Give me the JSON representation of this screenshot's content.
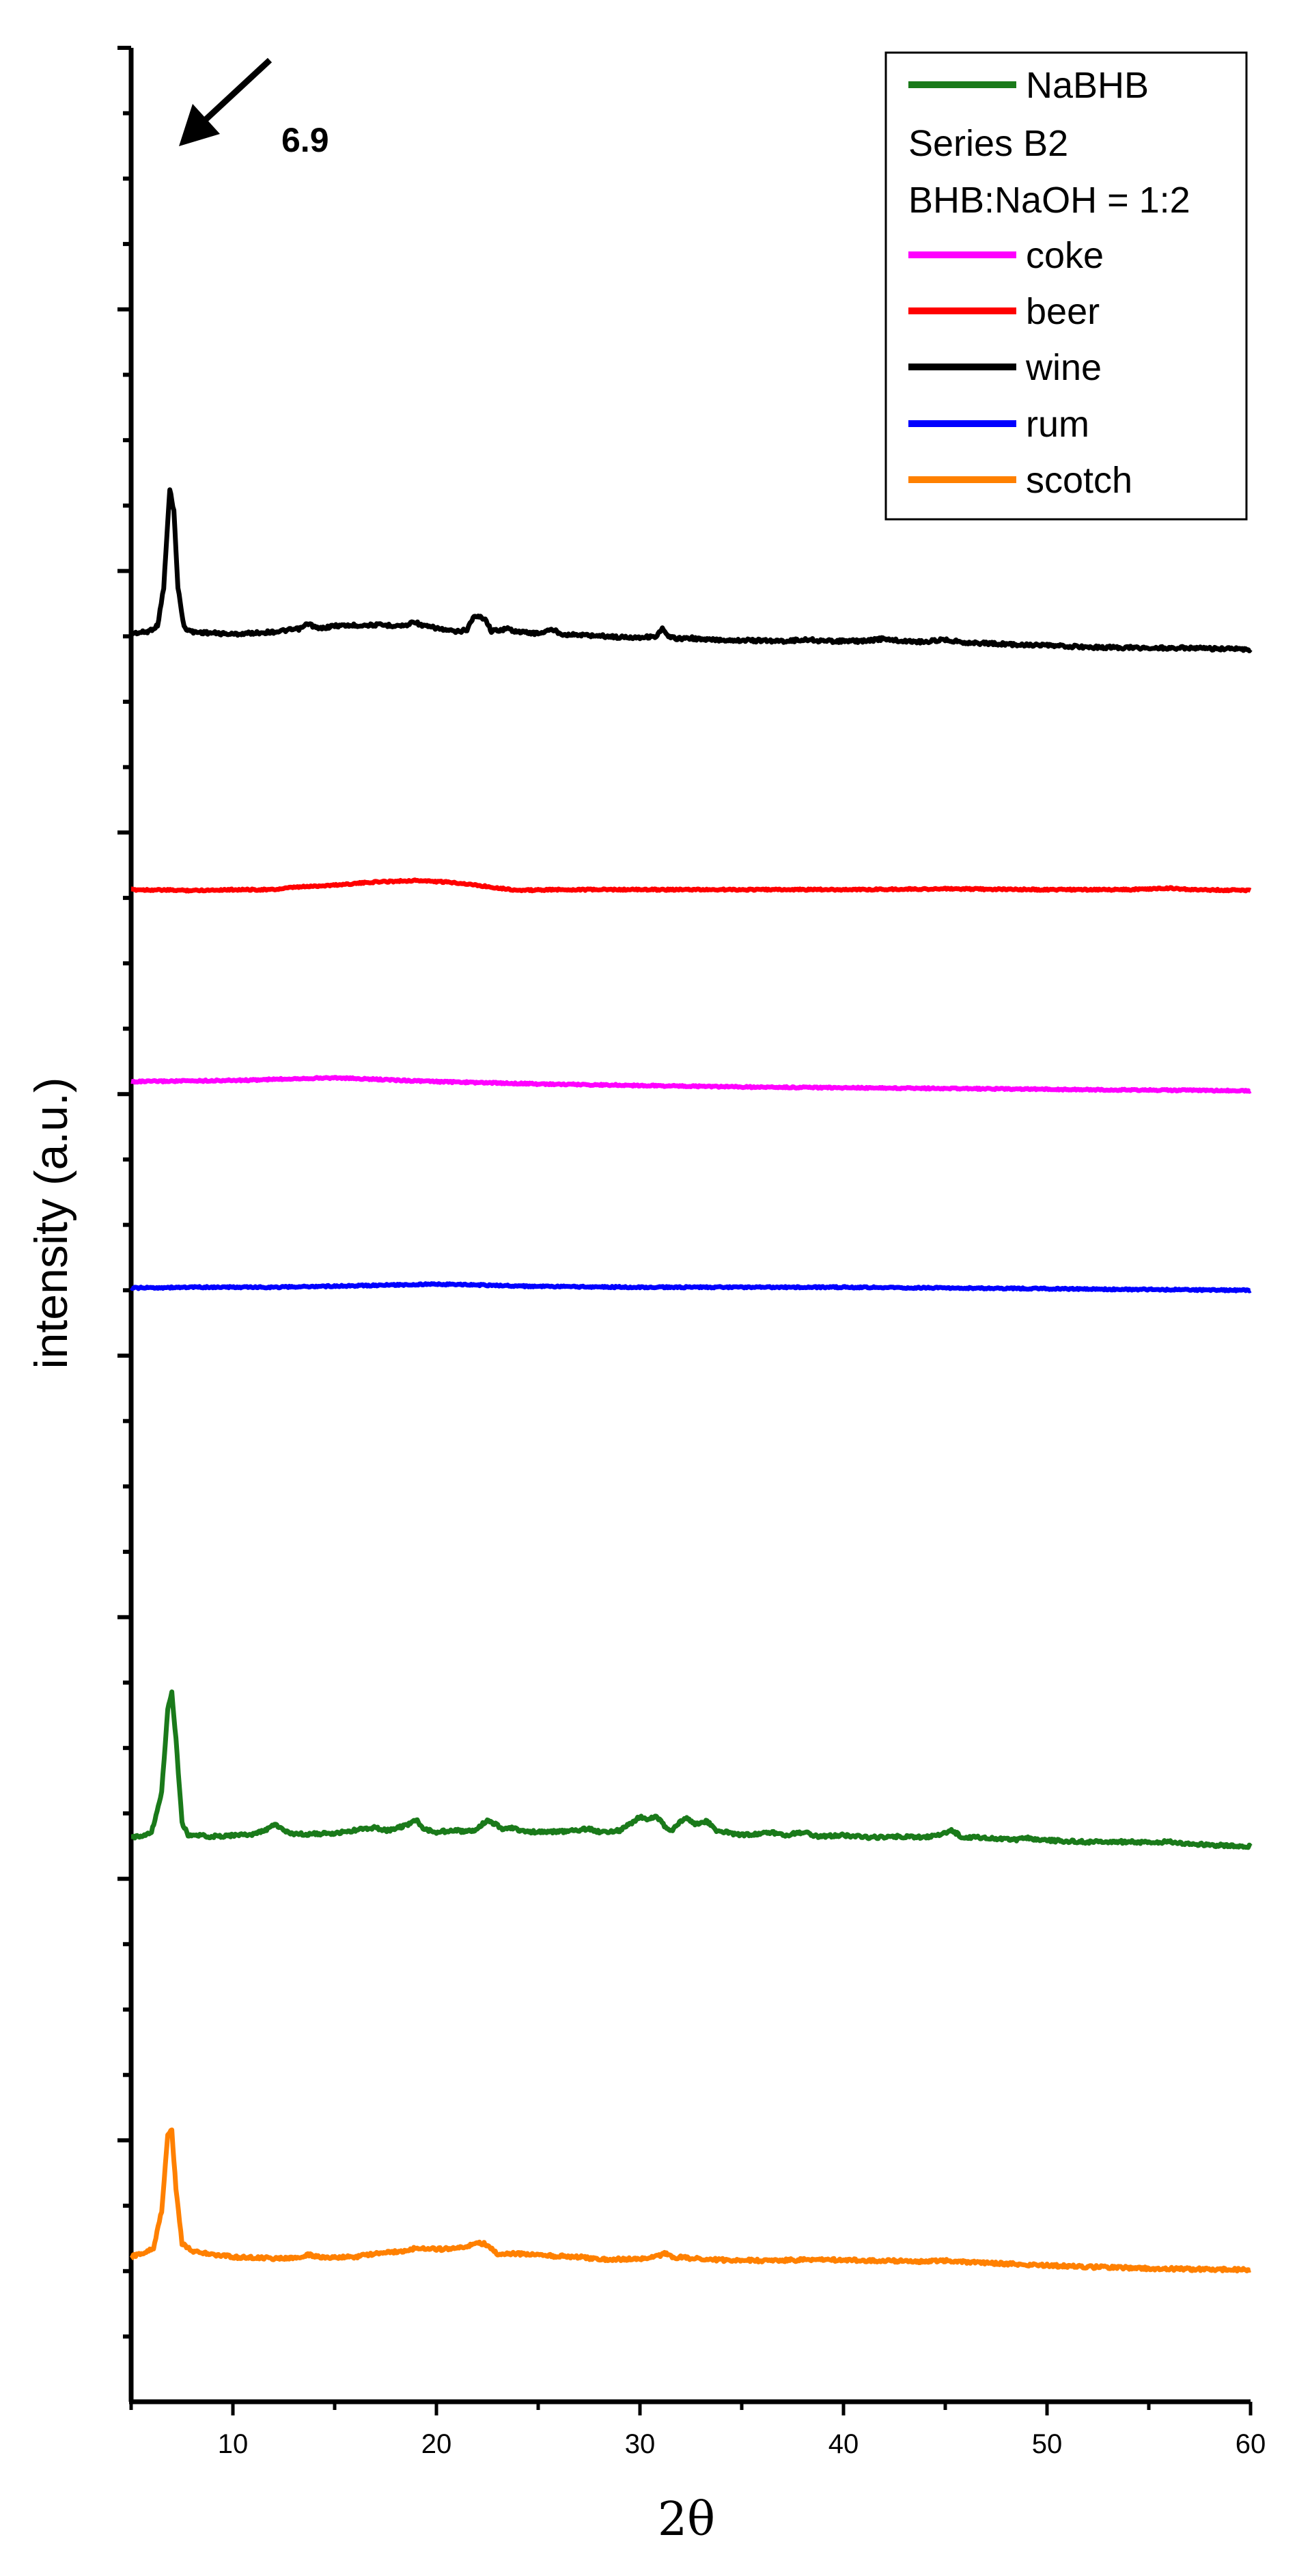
{
  "chart_data": {
    "type": "line",
    "title": "",
    "xlabel": "2θ",
    "ylabel": "intensity (a.u.)",
    "xlim": [
      5,
      60
    ],
    "xticks": [
      10,
      20,
      30,
      40,
      50,
      60
    ],
    "y_ticks_labeled": false,
    "grid": false,
    "legend_position": "top-right",
    "legend": {
      "entries": [
        {
          "label": "NaBHB",
          "color": "#1a7a1a",
          "swatch": true
        },
        {
          "label": "Series B2",
          "swatch": false
        },
        {
          "label": "BHB:NaOH = 1:2",
          "swatch": false
        },
        {
          "label": "coke",
          "color": "#ff00ff",
          "swatch": true
        },
        {
          "label": "beer",
          "color": "#ff0000",
          "swatch": true
        },
        {
          "label": "wine",
          "color": "#000000",
          "swatch": true
        },
        {
          "label": "rum",
          "color": "#0000ff",
          "swatch": true
        },
        {
          "label": "scotch",
          "color": "#ff8000",
          "swatch": true
        }
      ]
    },
    "annotation": {
      "text": "6.9",
      "x": 6.9,
      "series": "wine"
    },
    "series": [
      {
        "name": "wine",
        "color": "#000000",
        "points": [
          [
            5,
            0.0
          ],
          [
            5.8,
            0.02
          ],
          [
            6.3,
            0.1
          ],
          [
            6.6,
            0.6
          ],
          [
            6.9,
            1.88
          ],
          [
            7.1,
            1.6
          ],
          [
            7.3,
            0.6
          ],
          [
            7.6,
            0.08
          ],
          [
            8,
            0.02
          ],
          [
            10,
            -0.01
          ],
          [
            12,
            0.02
          ],
          [
            13.3,
            0.06
          ],
          [
            13.7,
            0.13
          ],
          [
            14.2,
            0.06
          ],
          [
            15,
            0.1
          ],
          [
            17,
            0.11
          ],
          [
            18.5,
            0.1
          ],
          [
            18.9,
            0.16
          ],
          [
            19.3,
            0.1
          ],
          [
            20,
            0.07
          ],
          [
            20.5,
            0.04
          ],
          [
            21,
            0.02
          ],
          [
            21.5,
            0.05
          ],
          [
            21.8,
            0.21
          ],
          [
            22.1,
            0.22
          ],
          [
            22.4,
            0.19
          ],
          [
            22.7,
            0.03
          ],
          [
            23.5,
            0.06
          ],
          [
            24,
            0.02
          ],
          [
            25,
            0.0
          ],
          [
            25.7,
            0.05
          ],
          [
            26.2,
            -0.01
          ],
          [
            27,
            -0.02
          ],
          [
            28,
            -0.03
          ],
          [
            29,
            -0.05
          ],
          [
            30,
            -0.05
          ],
          [
            30.8,
            -0.04
          ],
          [
            31.1,
            0.06
          ],
          [
            31.4,
            -0.05
          ],
          [
            32,
            -0.07
          ],
          [
            32.5,
            -0.06
          ],
          [
            33,
            -0.08
          ],
          [
            35,
            -0.09
          ],
          [
            37,
            -0.1
          ],
          [
            38.3,
            -0.08
          ],
          [
            39,
            -0.1
          ],
          [
            41,
            -0.1
          ],
          [
            42,
            -0.07
          ],
          [
            42.8,
            -0.1
          ],
          [
            44,
            -0.11
          ],
          [
            45,
            -0.08
          ],
          [
            46,
            -0.12
          ],
          [
            48,
            -0.14
          ],
          [
            50,
            -0.16
          ],
          [
            52,
            -0.18
          ],
          [
            55,
            -0.19
          ],
          [
            57,
            -0.19
          ],
          [
            58,
            -0.2
          ],
          [
            60,
            -0.21
          ]
        ]
      },
      {
        "name": "beer",
        "color": "#ff0000",
        "points": [
          [
            5,
            0.0
          ],
          [
            8,
            -0.01
          ],
          [
            10,
            0.0
          ],
          [
            12,
            0.0
          ],
          [
            13,
            0.03
          ],
          [
            15,
            0.06
          ],
          [
            17,
            0.1
          ],
          [
            19,
            0.12
          ],
          [
            21,
            0.09
          ],
          [
            22.5,
            0.04
          ],
          [
            24,
            -0.01
          ],
          [
            26,
            0.0
          ],
          [
            30,
            0.0
          ],
          [
            35,
            0.0
          ],
          [
            40,
            0.0
          ],
          [
            45,
            0.01
          ],
          [
            50,
            0.0
          ],
          [
            54,
            0.0
          ],
          [
            56,
            0.02
          ],
          [
            57,
            0.0
          ],
          [
            60,
            -0.01
          ]
        ]
      },
      {
        "name": "coke",
        "color": "#ff00ff",
        "points": [
          [
            5,
            0.0
          ],
          [
            8,
            0.01
          ],
          [
            11,
            0.02
          ],
          [
            13,
            0.04
          ],
          [
            15,
            0.05
          ],
          [
            17,
            0.03
          ],
          [
            20,
            0.0
          ],
          [
            25,
            -0.03
          ],
          [
            30,
            -0.05
          ],
          [
            35,
            -0.07
          ],
          [
            40,
            -0.08
          ],
          [
            45,
            -0.09
          ],
          [
            50,
            -0.1
          ],
          [
            55,
            -0.11
          ],
          [
            60,
            -0.12
          ]
        ]
      },
      {
        "name": "rum",
        "color": "#0000ff",
        "points": [
          [
            5,
            0.0
          ],
          [
            8,
            0.01
          ],
          [
            12,
            0.01
          ],
          [
            16,
            0.03
          ],
          [
            20,
            0.05
          ],
          [
            22,
            0.04
          ],
          [
            25,
            0.02
          ],
          [
            30,
            0.01
          ],
          [
            35,
            0.01
          ],
          [
            40,
            0.01
          ],
          [
            45,
            0.0
          ],
          [
            50,
            -0.01
          ],
          [
            55,
            -0.02
          ],
          [
            60,
            -0.03
          ]
        ]
      },
      {
        "name": "NaBHB",
        "color": "#1a7a1a",
        "points": [
          [
            5,
            0.0
          ],
          [
            6,
            0.07
          ],
          [
            6.5,
            0.6
          ],
          [
            6.8,
            1.7
          ],
          [
            7.0,
            1.9
          ],
          [
            7.2,
            1.3
          ],
          [
            7.5,
            0.2
          ],
          [
            7.8,
            0.04
          ],
          [
            9,
            0.02
          ],
          [
            11,
            0.05
          ],
          [
            11.6,
            0.1
          ],
          [
            12.1,
            0.18
          ],
          [
            12.6,
            0.08
          ],
          [
            13,
            0.05
          ],
          [
            15,
            0.06
          ],
          [
            16.5,
            0.12
          ],
          [
            17,
            0.14
          ],
          [
            17.5,
            0.1
          ],
          [
            18,
            0.12
          ],
          [
            18.6,
            0.18
          ],
          [
            19,
            0.24
          ],
          [
            19.4,
            0.12
          ],
          [
            20,
            0.08
          ],
          [
            21,
            0.1
          ],
          [
            21.5,
            0.08
          ],
          [
            22,
            0.12
          ],
          [
            22.5,
            0.24
          ],
          [
            22.9,
            0.18
          ],
          [
            23.3,
            0.1
          ],
          [
            23.7,
            0.14
          ],
          [
            24.3,
            0.08
          ],
          [
            26,
            0.08
          ],
          [
            27.5,
            0.12
          ],
          [
            28,
            0.08
          ],
          [
            29,
            0.1
          ],
          [
            29.6,
            0.2
          ],
          [
            30,
            0.28
          ],
          [
            30.4,
            0.24
          ],
          [
            30.8,
            0.28
          ],
          [
            31.2,
            0.16
          ],
          [
            31.6,
            0.1
          ],
          [
            32,
            0.22
          ],
          [
            32.3,
            0.26
          ],
          [
            32.7,
            0.18
          ],
          [
            33.3,
            0.22
          ],
          [
            33.7,
            0.1
          ],
          [
            35,
            0.04
          ],
          [
            36.5,
            0.07
          ],
          [
            37.2,
            0.04
          ],
          [
            38,
            0.08
          ],
          [
            38.7,
            0.02
          ],
          [
            40,
            0.04
          ],
          [
            41,
            0.01
          ],
          [
            43,
            0.02
          ],
          [
            44,
            0.01
          ],
          [
            45,
            0.06
          ],
          [
            45.3,
            0.1
          ],
          [
            45.8,
            0.02
          ],
          [
            47,
            0.0
          ],
          [
            48.5,
            -0.02
          ],
          [
            49,
            0.0
          ],
          [
            50,
            -0.03
          ],
          [
            52,
            -0.05
          ],
          [
            54,
            -0.05
          ],
          [
            55,
            -0.06
          ],
          [
            56,
            -0.05
          ],
          [
            57,
            -0.07
          ],
          [
            58,
            -0.09
          ],
          [
            60,
            -0.11
          ]
        ]
      },
      {
        "name": "scotch",
        "color": "#ff8000",
        "points": [
          [
            5,
            0.0
          ],
          [
            5.5,
            0.04
          ],
          [
            6.1,
            0.12
          ],
          [
            6.5,
            0.6
          ],
          [
            6.8,
            1.6
          ],
          [
            7.0,
            1.65
          ],
          [
            7.2,
            0.9
          ],
          [
            7.5,
            0.18
          ],
          [
            8,
            0.08
          ],
          [
            9,
            0.03
          ],
          [
            10,
            0.0
          ],
          [
            12,
            -0.02
          ],
          [
            13,
            -0.02
          ],
          [
            13.8,
            0.03
          ],
          [
            14.3,
            -0.01
          ],
          [
            16,
            0.0
          ],
          [
            17,
            0.04
          ],
          [
            18.5,
            0.08
          ],
          [
            19,
            0.12
          ],
          [
            20,
            0.1
          ],
          [
            21,
            0.11
          ],
          [
            21.5,
            0.14
          ],
          [
            22,
            0.18
          ],
          [
            22.4,
            0.17
          ],
          [
            23,
            0.04
          ],
          [
            24,
            0.04
          ],
          [
            25,
            0.02
          ],
          [
            27,
            0.0
          ],
          [
            28,
            -0.03
          ],
          [
            30,
            -0.03
          ],
          [
            31,
            0.02
          ],
          [
            31.3,
            0.05
          ],
          [
            31.7,
            -0.02
          ],
          [
            32,
            0.0
          ],
          [
            32.5,
            -0.02
          ],
          [
            34,
            -0.04
          ],
          [
            36,
            -0.05
          ],
          [
            38,
            -0.04
          ],
          [
            40,
            -0.04
          ],
          [
            42,
            -0.05
          ],
          [
            44,
            -0.06
          ],
          [
            45,
            -0.05
          ],
          [
            47,
            -0.08
          ],
          [
            50,
            -0.11
          ],
          [
            52,
            -0.13
          ],
          [
            55,
            -0.15
          ],
          [
            57,
            -0.16
          ],
          [
            60,
            -0.17
          ]
        ]
      }
    ]
  }
}
